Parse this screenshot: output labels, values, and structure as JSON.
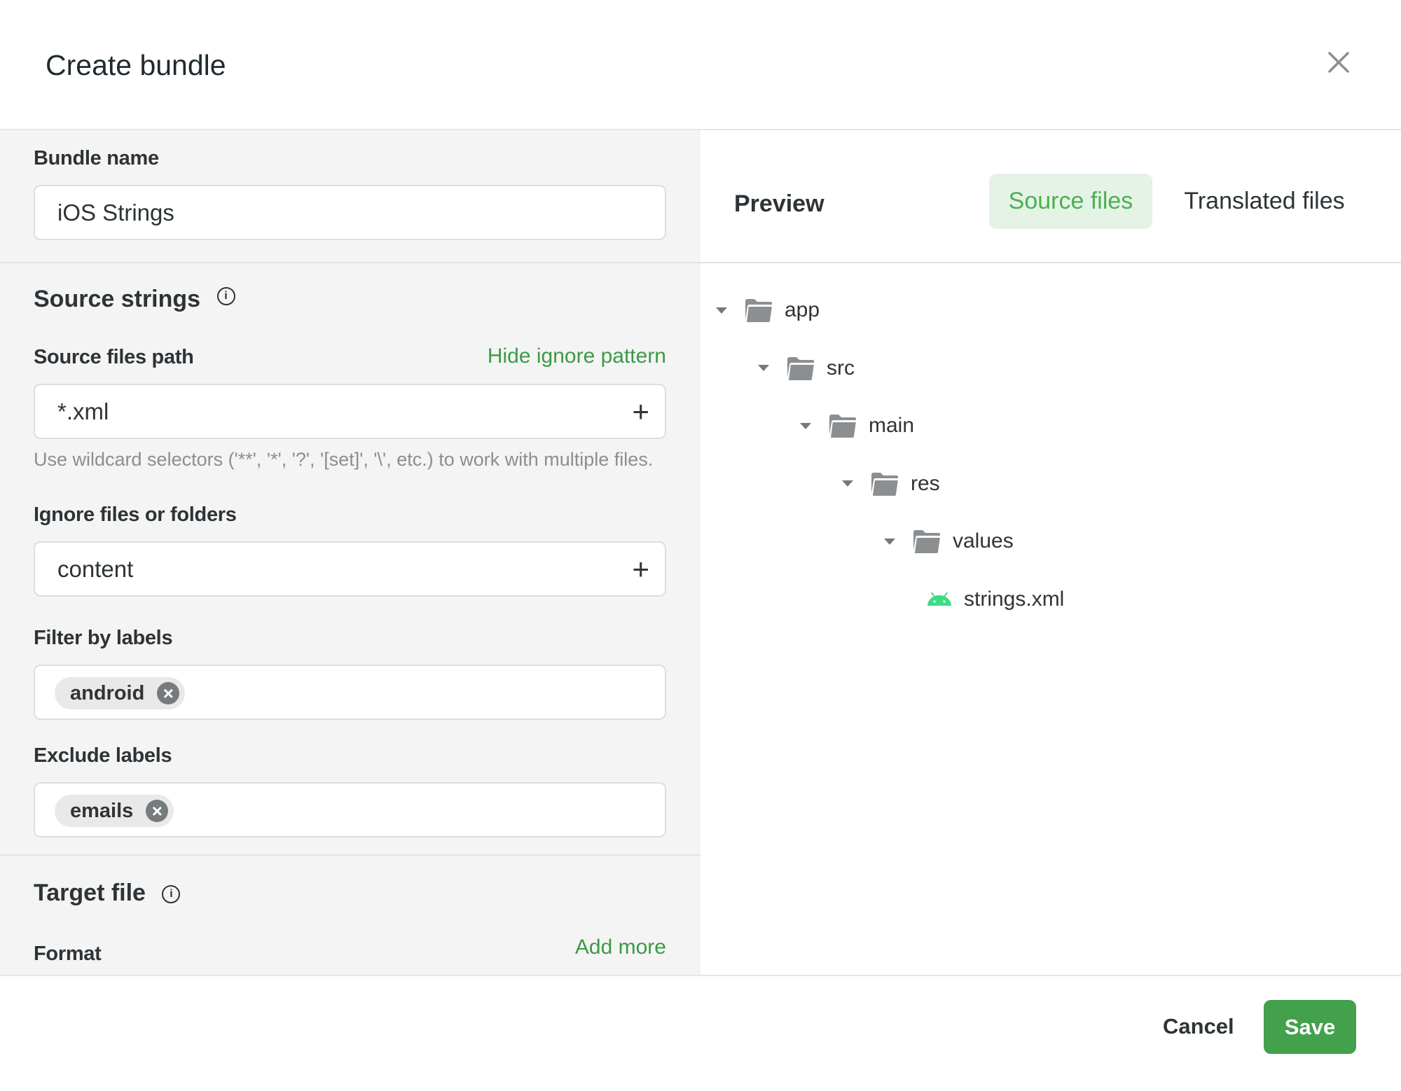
{
  "dialog": {
    "title": "Create bundle",
    "close_icon": "close-icon"
  },
  "form": {
    "bundle_name_label": "Bundle name",
    "bundle_name_value": "iOS Strings",
    "source_strings_heading": "Source strings",
    "source_path_label": "Source files path",
    "hide_ignore_link": "Hide ignore pattern",
    "source_path_value": "*.xml",
    "source_path_help": "Use wildcard selectors ('**', '*', '?', '[set]', '\\', etc.) to work with multiple files.",
    "ignore_label": "Ignore files or folders",
    "ignore_value": "content",
    "filter_labels_label": "Filter by labels",
    "filter_labels": [
      "android"
    ],
    "exclude_labels_label": "Exclude labels",
    "exclude_labels": [
      "emails"
    ],
    "target_heading": "Target file",
    "format_label": "Format",
    "add_more_link": "Add more"
  },
  "preview": {
    "title": "Preview",
    "tabs": [
      {
        "label": "Source files",
        "active": true
      },
      {
        "label": "Translated files",
        "active": false
      }
    ],
    "tree": [
      {
        "name": "app",
        "type": "folder",
        "depth": 0
      },
      {
        "name": "src",
        "type": "folder",
        "depth": 1
      },
      {
        "name": "main",
        "type": "folder",
        "depth": 2
      },
      {
        "name": "res",
        "type": "folder",
        "depth": 3
      },
      {
        "name": "values",
        "type": "folder",
        "depth": 4
      },
      {
        "name": "strings.xml",
        "type": "android-file",
        "depth": 5
      }
    ]
  },
  "footer": {
    "cancel": "Cancel",
    "save": "Save"
  },
  "colors": {
    "accent": "#3c9a45",
    "save_bg": "#43a04b",
    "tab_active_bg": "#e5f3e7",
    "android": "#3ddc84"
  }
}
